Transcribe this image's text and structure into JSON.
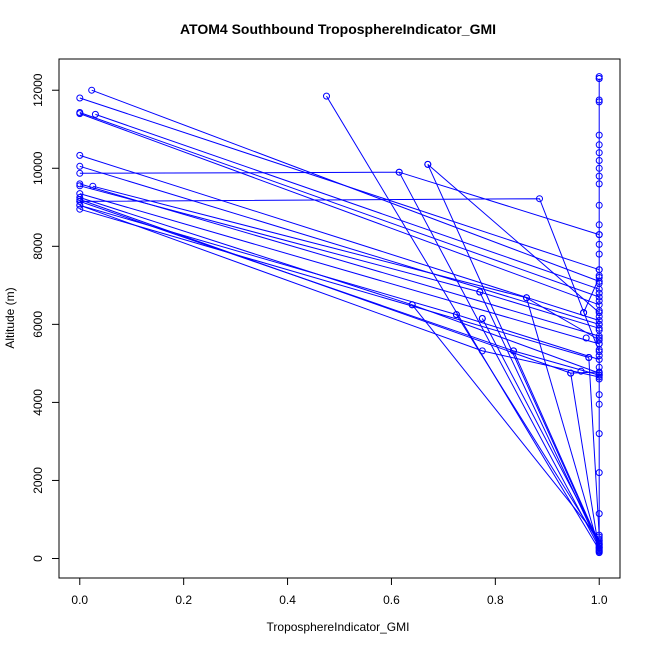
{
  "chart_data": {
    "type": "line",
    "title": "ATOM4 Southbound TroposphereIndicator_GMI",
    "xlabel": "TroposphereIndicator_GMI",
    "ylabel": "Altitude (m)",
    "xlim": [
      -0.04,
      1.04
    ],
    "ylim": [
      -500,
      12800
    ],
    "xticks": [
      0.0,
      0.2,
      0.4,
      0.6,
      0.8,
      1.0
    ],
    "xtick_labels": [
      "0.0",
      "0.2",
      "0.4",
      "0.6",
      "0.8",
      "1.0"
    ],
    "yticks": [
      0,
      2000,
      4000,
      6000,
      8000,
      10000,
      12000
    ],
    "ytick_labels": [
      "0",
      "2000",
      "4000",
      "6000",
      "8000",
      "10000",
      "12000"
    ],
    "grid": false,
    "series_color": "#0000ff",
    "series": [
      {
        "points": [
          [
            0.023,
            12000
          ],
          [
            1.0,
            7100
          ]
        ]
      },
      {
        "points": [
          [
            0.0,
            11800
          ],
          [
            1.0,
            7400
          ]
        ]
      },
      {
        "points": [
          [
            0.0,
            11430
          ],
          [
            1.0,
            6700
          ]
        ]
      },
      {
        "points": [
          [
            0.0,
            11400
          ],
          [
            1.0,
            6500
          ]
        ]
      },
      {
        "points": [
          [
            0.03,
            11380
          ],
          [
            1.0,
            6900
          ]
        ]
      },
      {
        "points": [
          [
            0.0,
            10330
          ],
          [
            1.0,
            6100
          ]
        ]
      },
      {
        "points": [
          [
            0.0,
            10050
          ],
          [
            1.0,
            6000
          ]
        ]
      },
      {
        "points": [
          [
            0.0,
            9870
          ],
          [
            0.615,
            9900
          ],
          [
            1.0,
            8300
          ]
        ]
      },
      {
        "points": [
          [
            0.0,
            9600
          ],
          [
            1.0,
            5700
          ]
        ]
      },
      {
        "points": [
          [
            0.0,
            9550
          ],
          [
            0.77,
            6830
          ],
          [
            1.0,
            5900
          ]
        ]
      },
      {
        "points": [
          [
            0.025,
            9540
          ],
          [
            0.86,
            6680
          ],
          [
            1.0,
            5600
          ]
        ]
      },
      {
        "points": [
          [
            0.0,
            9350
          ],
          [
            1.0,
            5500
          ]
        ]
      },
      {
        "points": [
          [
            0.0,
            9150
          ],
          [
            0.885,
            9220
          ],
          [
            1.0,
            5300
          ]
        ]
      },
      {
        "points": [
          [
            0.0,
            9050
          ],
          [
            0.725,
            6250
          ],
          [
            1.0,
            5100
          ]
        ]
      },
      {
        "points": [
          [
            0.0,
            8950
          ],
          [
            0.98,
            5150
          ]
        ]
      },
      {
        "points": [
          [
            0.0,
            9250
          ],
          [
            0.64,
            6500
          ],
          [
            1.0,
            4750
          ]
        ]
      },
      {
        "points": [
          [
            0.0,
            9050
          ],
          [
            0.775,
            5320
          ],
          [
            1.0,
            4650
          ]
        ]
      },
      {
        "points": [
          [
            0.0,
            9150
          ],
          [
            0.835,
            5320
          ],
          [
            1.0,
            4700
          ]
        ]
      },
      {
        "points": [
          [
            0.0,
            9200
          ],
          [
            0.945,
            4750
          ],
          [
            1.0,
            4780
          ]
        ]
      },
      {
        "points": [
          [
            0.475,
            11850
          ],
          [
            1.0,
            220
          ]
        ]
      },
      {
        "points": [
          [
            0.67,
            10100
          ],
          [
            1.0,
            6300
          ]
        ]
      },
      {
        "points": [
          [
            0.67,
            10100
          ],
          [
            1.0,
            350
          ]
        ]
      },
      {
        "points": [
          [
            0.615,
            9900
          ],
          [
            1.0,
            280
          ]
        ]
      },
      {
        "points": [
          [
            0.77,
            6830
          ],
          [
            1.0,
            320
          ]
        ]
      },
      {
        "points": [
          [
            0.86,
            6680
          ],
          [
            1.0,
            250
          ]
        ]
      },
      {
        "points": [
          [
            0.725,
            6250
          ],
          [
            1.0,
            400
          ]
        ]
      },
      {
        "points": [
          [
            0.775,
            6150
          ],
          [
            1.0,
            450
          ]
        ]
      },
      {
        "points": [
          [
            0.64,
            6500
          ],
          [
            1.0,
            500
          ]
        ]
      },
      {
        "points": [
          [
            0.97,
            6300
          ],
          [
            1.0,
            7200
          ]
        ]
      },
      {
        "points": [
          [
            0.835,
            5320
          ],
          [
            1.0,
            380
          ]
        ]
      },
      {
        "points": [
          [
            0.945,
            4750
          ],
          [
            1.0,
            180
          ]
        ]
      },
      {
        "points": [
          [
            0.98,
            5150
          ],
          [
            1.0,
            600
          ]
        ]
      },
      {
        "points": [
          [
            1.0,
            12300
          ],
          [
            1.0,
            150
          ]
        ]
      }
    ],
    "extra_points": [
      [
        1.0,
        12350
      ],
      [
        1.0,
        12300
      ],
      [
        1.0,
        11750
      ],
      [
        1.0,
        11700
      ],
      [
        1.0,
        10850
      ],
      [
        1.0,
        10600
      ],
      [
        1.0,
        10400
      ],
      [
        1.0,
        10200
      ],
      [
        1.0,
        10000
      ],
      [
        1.0,
        9800
      ],
      [
        1.0,
        9600
      ],
      [
        1.0,
        9050
      ],
      [
        1.0,
        8550
      ],
      [
        1.0,
        8300
      ],
      [
        1.0,
        8050
      ],
      [
        1.0,
        7800
      ],
      [
        1.0,
        7400
      ],
      [
        1.0,
        7250
      ],
      [
        1.0,
        7050
      ],
      [
        1.0,
        6800
      ],
      [
        1.0,
        6600
      ],
      [
        1.0,
        6350
      ],
      [
        1.0,
        6200
      ],
      [
        1.0,
        6000
      ],
      [
        1.0,
        5850
      ],
      [
        1.0,
        5650
      ],
      [
        1.0,
        5500
      ],
      [
        1.0,
        5350
      ],
      [
        1.0,
        5200
      ],
      [
        1.0,
        4900
      ],
      [
        1.0,
        4700
      ],
      [
        1.0,
        4600
      ],
      [
        1.0,
        4200
      ],
      [
        1.0,
        3950
      ],
      [
        1.0,
        3200
      ],
      [
        1.0,
        2200
      ],
      [
        1.0,
        1150
      ],
      [
        1.0,
        550
      ],
      [
        1.0,
        450
      ],
      [
        1.0,
        350
      ],
      [
        1.0,
        280
      ],
      [
        1.0,
        200
      ],
      [
        0.97,
        6300
      ],
      [
        0.975,
        5650
      ],
      [
        0.965,
        4800
      ],
      [
        0.775,
        6150
      ]
    ]
  }
}
